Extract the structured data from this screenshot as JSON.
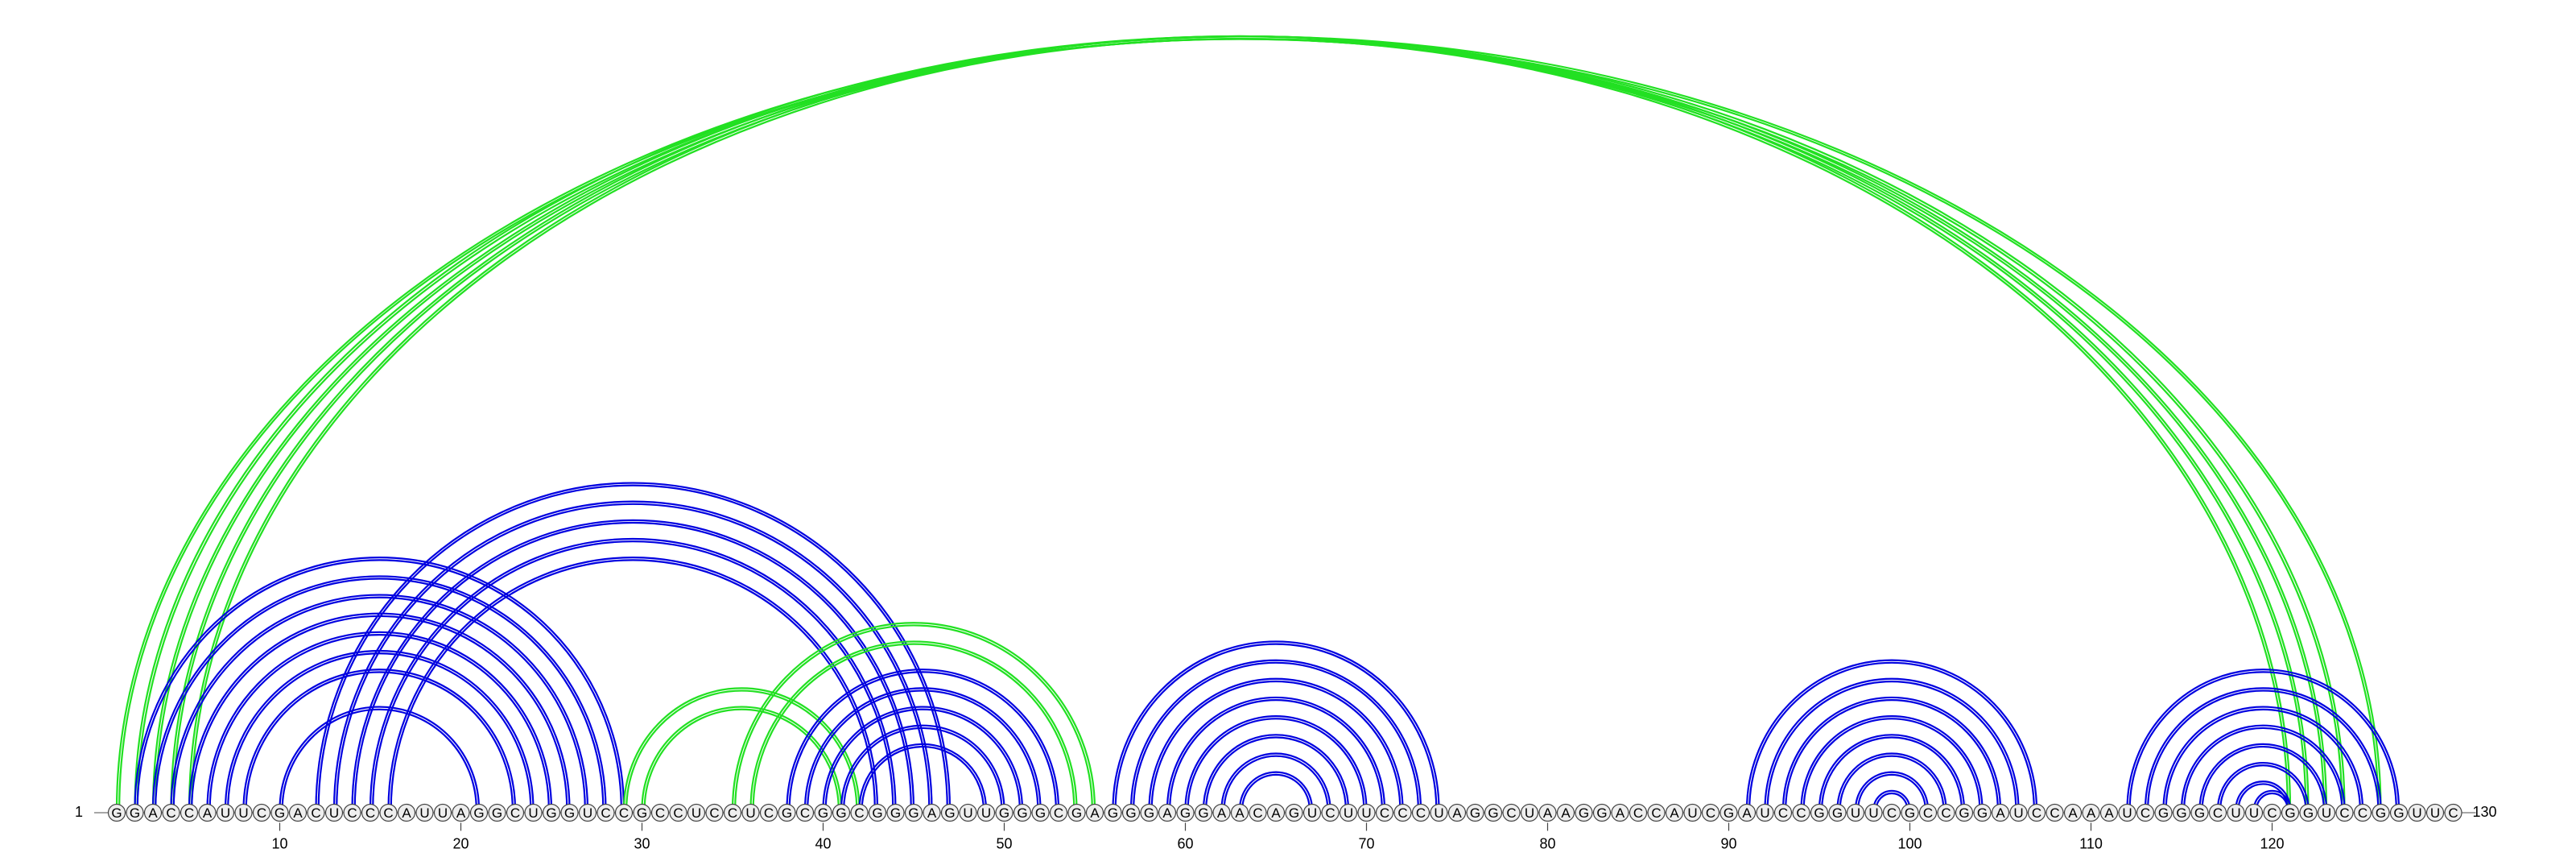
{
  "chart_data": {
    "type": "arc-diagram",
    "title": "",
    "sequence": "GGACCAUUCGACUCCCAUUAGGCUGGUCCGCCUCCUCGCGGCGGGAGUUGGGCGAGGGAGGAACAGUCUUCCCUAGGCUAAGGACCAUCGAUCCGGUUCGCCGGAUCCAAAUCGGGCUUCGGUCCGGUUC",
    "start_label": "1",
    "end_label": "130",
    "length": 130,
    "ticks": [
      {
        "pos": 10,
        "label": "10"
      },
      {
        "pos": 20,
        "label": "20"
      },
      {
        "pos": 30,
        "label": "30"
      },
      {
        "pos": 40,
        "label": "40"
      },
      {
        "pos": 50,
        "label": "50"
      },
      {
        "pos": 60,
        "label": "60"
      },
      {
        "pos": 70,
        "label": "70"
      },
      {
        "pos": 80,
        "label": "80"
      },
      {
        "pos": 90,
        "label": "90"
      },
      {
        "pos": 100,
        "label": "100"
      },
      {
        "pos": 110,
        "label": "110"
      },
      {
        "pos": 120,
        "label": "120"
      }
    ],
    "colors": {
      "blue": "#0000e0",
      "green": "#22e022",
      "node_fill": "#eeeeee",
      "node_stroke": "#444444"
    },
    "helices": [
      {
        "name": "long-range-green",
        "color": "green",
        "pairs": [
          [
            1,
            126
          ],
          [
            2,
            124
          ],
          [
            3,
            123
          ],
          [
            4,
            122
          ],
          [
            5,
            121
          ]
        ]
      },
      {
        "name": "helix-2-27",
        "color": "blue",
        "pairs": [
          [
            2,
            29
          ],
          [
            3,
            28
          ],
          [
            4,
            27
          ],
          [
            5,
            26
          ],
          [
            6,
            25
          ],
          [
            7,
            24
          ],
          [
            8,
            23
          ],
          [
            10,
            21
          ]
        ]
      },
      {
        "name": "helix-12-47",
        "color": "blue",
        "pairs": [
          [
            12,
            47
          ],
          [
            13,
            46
          ],
          [
            14,
            45
          ],
          [
            15,
            44
          ],
          [
            16,
            43
          ]
        ]
      },
      {
        "name": "green-29-42",
        "color": "green",
        "pairs": [
          [
            29,
            42
          ],
          [
            30,
            41
          ]
        ]
      },
      {
        "name": "green-35-55",
        "color": "green",
        "pairs": [
          [
            35,
            55
          ],
          [
            36,
            54
          ]
        ]
      },
      {
        "name": "helix-38-54",
        "color": "blue",
        "pairs": [
          [
            38,
            53
          ],
          [
            39,
            52
          ],
          [
            40,
            51
          ],
          [
            41,
            50
          ],
          [
            42,
            49
          ]
        ]
      },
      {
        "name": "hairpin-56-74",
        "color": "blue",
        "pairs": [
          [
            56,
            74
          ],
          [
            57,
            73
          ],
          [
            58,
            72
          ],
          [
            59,
            71
          ],
          [
            60,
            70
          ],
          [
            61,
            69
          ],
          [
            62,
            68
          ],
          [
            63,
            67
          ]
        ]
      },
      {
        "name": "hairpin-91-107",
        "color": "blue",
        "pairs": [
          [
            91,
            107
          ],
          [
            92,
            106
          ],
          [
            93,
            105
          ],
          [
            94,
            104
          ],
          [
            95,
            103
          ],
          [
            96,
            102
          ],
          [
            97,
            101
          ],
          [
            98,
            100
          ]
        ]
      },
      {
        "name": "hairpin-112-127",
        "color": "blue",
        "pairs": [
          [
            112,
            127
          ],
          [
            113,
            126
          ],
          [
            114,
            125
          ],
          [
            115,
            124
          ],
          [
            116,
            123
          ],
          [
            117,
            122
          ],
          [
            118,
            121
          ],
          [
            119,
            121
          ]
        ]
      }
    ]
  }
}
